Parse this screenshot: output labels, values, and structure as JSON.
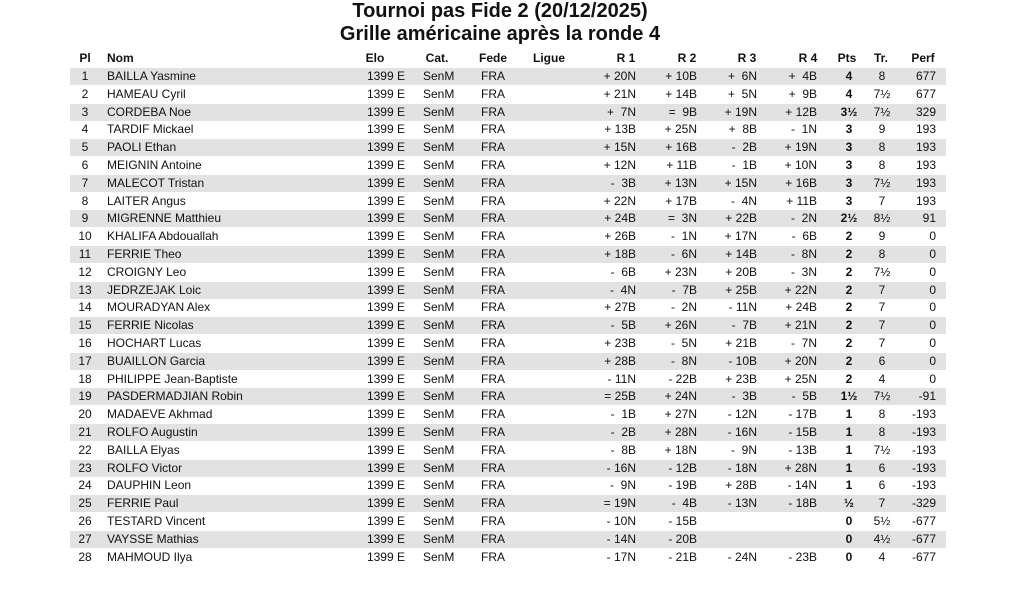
{
  "header": {
    "title": "Tournoi pas Fide 2 (20/12/2025)",
    "subtitle": "Grille américaine après la ronde 4"
  },
  "table": {
    "columns": [
      "Pl",
      "Nom",
      "Elo",
      "Cat.",
      "Fede",
      "Ligue",
      "R 1",
      "R 2",
      "R 3",
      "R 4",
      "Pts",
      "Tr.",
      "Perf"
    ],
    "rows": [
      [
        "1",
        "BAILLA Yasmine",
        "1399 E",
        "SenM",
        "FRA",
        null,
        "+ 20N",
        "+ 10B",
        "+  6N",
        "+  4B",
        "4",
        "8",
        "677"
      ],
      [
        "2",
        "HAMEAU Cyril",
        "1399 E",
        "SenM",
        "FRA",
        null,
        "+ 21N",
        "+ 14B",
        "+  5N",
        "+  9B",
        "4",
        "7½",
        "677"
      ],
      [
        "3",
        "CORDEBA Noe",
        "1399 E",
        "SenM",
        "FRA",
        null,
        "+  7N",
        "=  9B",
        "+ 19N",
        "+ 12B",
        "3½",
        "7½",
        "329"
      ],
      [
        "4",
        "TARDIF Mickael",
        "1399 E",
        "SenM",
        "FRA",
        null,
        "+ 13B",
        "+ 25N",
        "+  8B",
        "-  1N",
        "3",
        "9",
        "193"
      ],
      [
        "5",
        "PAOLI Ethan",
        "1399 E",
        "SenM",
        "FRA",
        null,
        "+ 15N",
        "+ 16B",
        "-  2B",
        "+ 19N",
        "3",
        "8",
        "193"
      ],
      [
        "6",
        "MEIGNIN Antoine",
        "1399 E",
        "SenM",
        "FRA",
        null,
        "+ 12N",
        "+ 11B",
        "-  1B",
        "+ 10N",
        "3",
        "8",
        "193"
      ],
      [
        "7",
        "MALECOT Tristan",
        "1399 E",
        "SenM",
        "FRA",
        null,
        "-  3B",
        "+ 13N",
        "+ 15N",
        "+ 16B",
        "3",
        "7½",
        "193"
      ],
      [
        "8",
        "LAITER Angus",
        "1399 E",
        "SenM",
        "FRA",
        null,
        "+ 22N",
        "+ 17B",
        "-  4N",
        "+ 11B",
        "3",
        "7",
        "193"
      ],
      [
        "9",
        "MIGRENNE Matthieu",
        "1399 E",
        "SenM",
        "FRA",
        null,
        "+ 24B",
        "=  3N",
        "+ 22B",
        "-  2N",
        "2½",
        "8½",
        "91"
      ],
      [
        "10",
        "KHALIFA Abdouallah",
        "1399 E",
        "SenM",
        "FRA",
        null,
        "+ 26B",
        "-  1N",
        "+ 17N",
        "-  6B",
        "2",
        "9",
        "0"
      ],
      [
        "11",
        "FERRIE Theo",
        "1399 E",
        "SenM",
        "FRA",
        null,
        "+ 18B",
        "-  6N",
        "+ 14B",
        "-  8N",
        "2",
        "8",
        "0"
      ],
      [
        "12",
        "CROIGNY Leo",
        "1399 E",
        "SenM",
        "FRA",
        null,
        "-  6B",
        "+ 23N",
        "+ 20B",
        "-  3N",
        "2",
        "7½",
        "0"
      ],
      [
        "13",
        "JEDRZEJAK Loic",
        "1399 E",
        "SenM",
        "FRA",
        null,
        "-  4N",
        "-  7B",
        "+ 25B",
        "+ 22N",
        "2",
        "7",
        "0"
      ],
      [
        "14",
        "MOURADYAN Alex",
        "1399 E",
        "SenM",
        "FRA",
        null,
        "+ 27B",
        "-  2N",
        "- 11N",
        "+ 24B",
        "2",
        "7",
        "0"
      ],
      [
        "15",
        "FERRIE Nicolas",
        "1399 E",
        "SenM",
        "FRA",
        null,
        "-  5B",
        "+ 26N",
        "-  7B",
        "+ 21N",
        "2",
        "7",
        "0"
      ],
      [
        "16",
        "HOCHART Lucas",
        "1399 E",
        "SenM",
        "FRA",
        null,
        "+ 23B",
        "-  5N",
        "+ 21B",
        "-  7N",
        "2",
        "7",
        "0"
      ],
      [
        "17",
        "BUAILLON Garcia",
        "1399 E",
        "SenM",
        "FRA",
        null,
        "+ 28B",
        "-  8N",
        "- 10B",
        "+ 20N",
        "2",
        "6",
        "0"
      ],
      [
        "18",
        "PHILIPPE Jean-Baptiste",
        "1399 E",
        "SenM",
        "FRA",
        null,
        "- 11N",
        "- 22B",
        "+ 23B",
        "+ 25N",
        "2",
        "4",
        "0"
      ],
      [
        "19",
        "PASDERMADJIAN Robin",
        "1399 E",
        "SenM",
        "FRA",
        null,
        "= 25B",
        "+ 24N",
        "-  3B",
        "-  5B",
        "1½",
        "7½",
        "-91"
      ],
      [
        "20",
        "MADAEVE Akhmad",
        "1399 E",
        "SenM",
        "FRA",
        null,
        "-  1B",
        "+ 27N",
        "- 12N",
        "- 17B",
        "1",
        "8",
        "-193"
      ],
      [
        "21",
        "ROLFO Augustin",
        "1399 E",
        "SenM",
        "FRA",
        null,
        "-  2B",
        "+ 28N",
        "- 16N",
        "- 15B",
        "1",
        "8",
        "-193"
      ],
      [
        "22",
        "BAILLA Elyas",
        "1399 E",
        "SenM",
        "FRA",
        null,
        "-  8B",
        "+ 18N",
        "-  9N",
        "- 13B",
        "1",
        "7½",
        "-193"
      ],
      [
        "23",
        "ROLFO Victor",
        "1399 E",
        "SenM",
        "FRA",
        null,
        "- 16N",
        "- 12B",
        "- 18N",
        "+ 28N",
        "1",
        "6",
        "-193"
      ],
      [
        "24",
        "DAUPHIN Leon",
        "1399 E",
        "SenM",
        "FRA",
        null,
        "-  9N",
        "- 19B",
        "+ 28B",
        "- 14N",
        "1",
        "6",
        "-193"
      ],
      [
        "25",
        "FERRIE Paul",
        "1399 E",
        "SenM",
        "FRA",
        null,
        "= 19N",
        "-  4B",
        "- 13N",
        "- 18B",
        "½",
        "7",
        "-329"
      ],
      [
        "26",
        "TESTARD Vincent",
        "1399 E",
        "SenM",
        "FRA",
        null,
        "- 10N",
        "- 15B",
        null,
        null,
        "0",
        "5½",
        "-677"
      ],
      [
        "27",
        "VAYSSE Mathias",
        "1399 E",
        "SenM",
        "FRA",
        null,
        "- 14N",
        "- 20B",
        null,
        null,
        "0",
        "4½",
        "-677"
      ],
      [
        "28",
        "MAHMOUD Ilya",
        "1399 E",
        "SenM",
        "FRA",
        null,
        "- 17N",
        "- 21B",
        "- 24N",
        "- 23B",
        "0",
        "4",
        "-677"
      ]
    ]
  }
}
